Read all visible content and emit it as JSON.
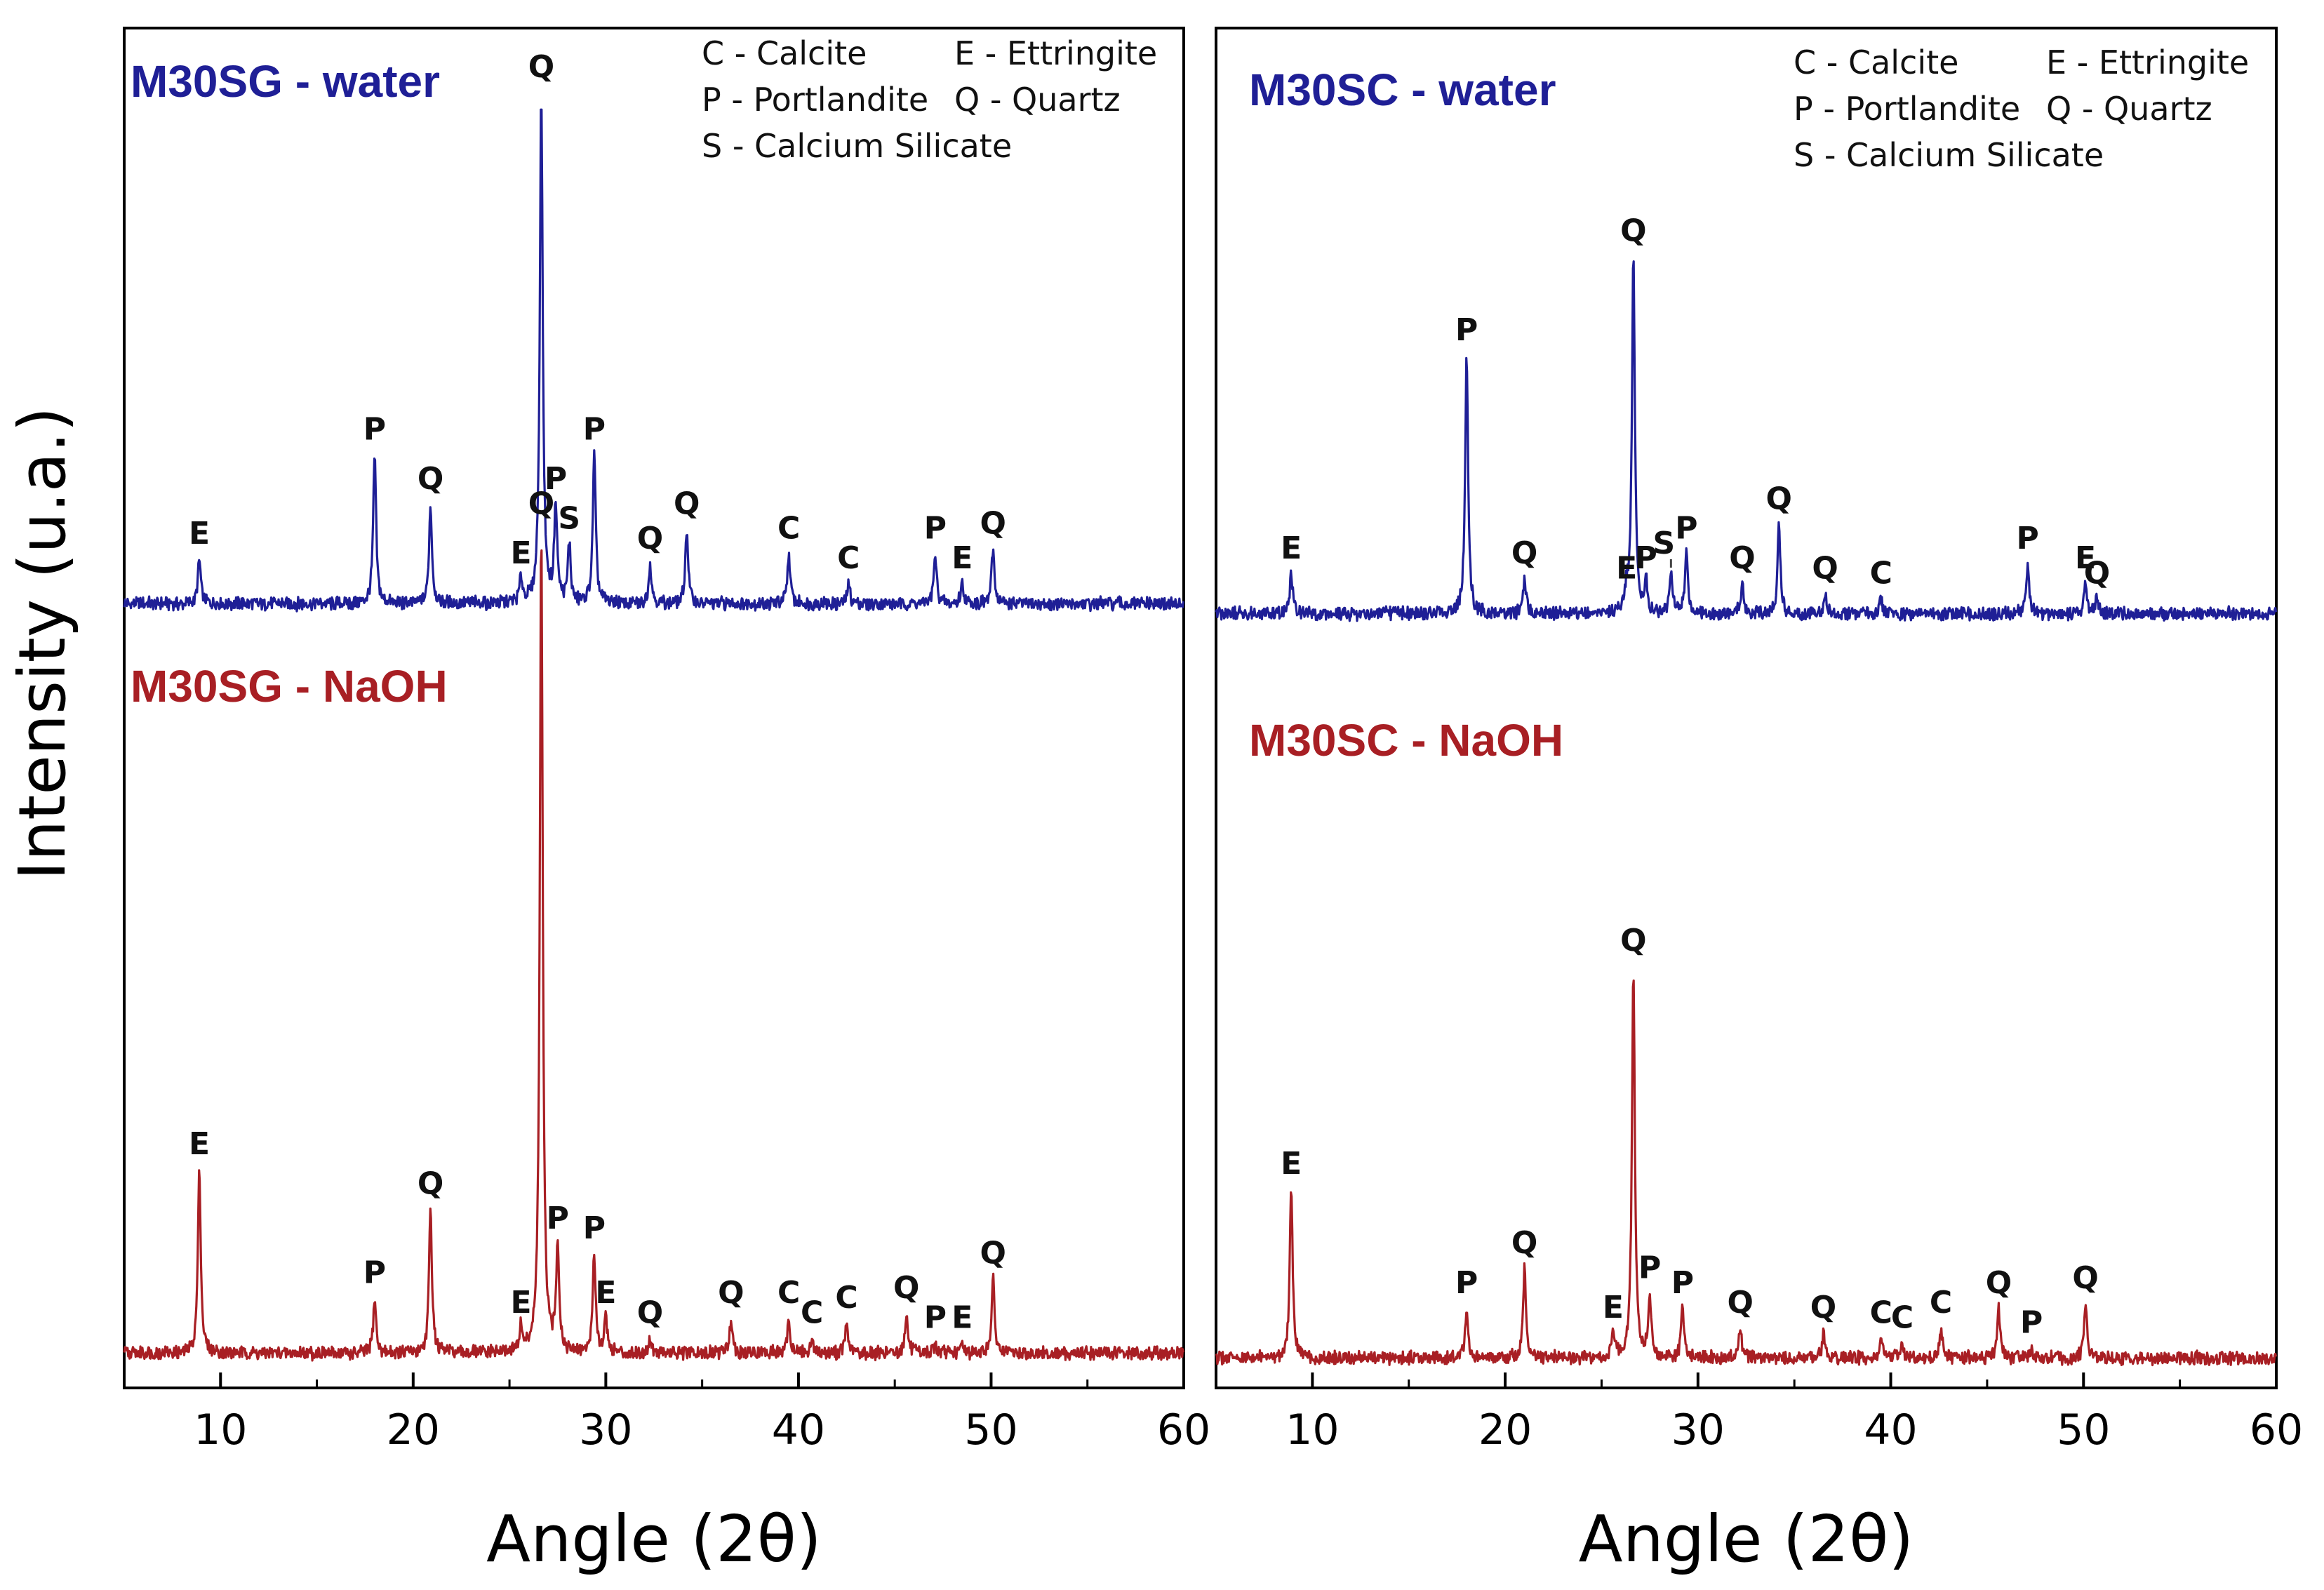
{
  "y_axis_label": "Intensity (u.a.)",
  "chart_data": [
    {
      "type": "line",
      "panel": "left",
      "xlabel": "Angle (2θ)",
      "ylabel": "Intensity (u.a.)",
      "xlim": [
        5,
        60
      ],
      "ylim": [
        -4,
        270
      ],
      "xticks": [
        10,
        20,
        30,
        40,
        50,
        60
      ],
      "legend": [
        "C - Calcite",
        "E - Ettringite",
        "P - Portlandite",
        "Q - Quartz",
        "S - Calcium Silicate"
      ],
      "legend_placement": "top-right",
      "series": [
        {
          "name": "M30SG - water",
          "color": "#1f1f96",
          "offset": 150,
          "baseline": 4,
          "noise": 1.2,
          "peaks": [
            {
              "x": 8.9,
              "h": 9,
              "label": "E"
            },
            {
              "x": 18.0,
              "h": 30,
              "label": "P"
            },
            {
              "x": 20.9,
              "h": 20,
              "label": "Q"
            },
            {
              "x": 25.6,
              "h": 5,
              "label": "E"
            },
            {
              "x": 26.65,
              "h": 103,
              "label": "Q"
            },
            {
              "x": 27.4,
              "h": 20,
              "label": "P"
            },
            {
              "x": 28.1,
              "h": 12,
              "label": "S"
            },
            {
              "x": 29.4,
              "h": 30,
              "label": "P"
            },
            {
              "x": 32.3,
              "h": 8,
              "label": "Q"
            },
            {
              "x": 34.2,
              "h": 15,
              "label": "Q"
            },
            {
              "x": 39.5,
              "h": 10,
              "label": "C"
            },
            {
              "x": 42.6,
              "h": 4,
              "label": "C"
            },
            {
              "x": 47.1,
              "h": 10,
              "label": "P"
            },
            {
              "x": 48.5,
              "h": 4,
              "label": "E"
            },
            {
              "x": 50.1,
              "h": 11,
              "label": "Q"
            }
          ]
        },
        {
          "name": "M30SG - NaOH",
          "color": "#a81f24",
          "offset": 0,
          "baseline": 3,
          "noise": 1.2,
          "peaks": [
            {
              "x": 8.9,
              "h": 37,
              "label": "E"
            },
            {
              "x": 18.0,
              "h": 11,
              "label": "P"
            },
            {
              "x": 20.9,
              "h": 29,
              "label": "Q"
            },
            {
              "x": 25.6,
              "h": 5,
              "label": "E"
            },
            {
              "x": 26.65,
              "h": 166,
              "label": "Q"
            },
            {
              "x": 27.5,
              "h": 22,
              "label": "P"
            },
            {
              "x": 29.4,
              "h": 20,
              "label": "P"
            },
            {
              "x": 30.0,
              "h": 7,
              "label": "E"
            },
            {
              "x": 32.3,
              "h": 3,
              "label": "Q"
            },
            {
              "x": 36.5,
              "h": 7,
              "label": "Q"
            },
            {
              "x": 39.5,
              "h": 7,
              "label": "C"
            },
            {
              "x": 40.7,
              "h": 3,
              "label": "C"
            },
            {
              "x": 42.5,
              "h": 6,
              "label": "C"
            },
            {
              "x": 45.6,
              "h": 8,
              "label": "Q"
            },
            {
              "x": 47.1,
              "h": 2,
              "label": "P"
            },
            {
              "x": 48.5,
              "h": 2,
              "label": "E"
            },
            {
              "x": 50.1,
              "h": 15,
              "label": "Q"
            }
          ]
        }
      ]
    },
    {
      "type": "line",
      "panel": "right",
      "xlabel": "Angle (2θ)",
      "ylabel": "Intensity (u.a.)",
      "xlim": [
        5,
        60
      ],
      "ylim": [
        -4,
        270
      ],
      "xticks": [
        10,
        20,
        30,
        40,
        50,
        60
      ],
      "legend": [
        "C - Calcite",
        "E - Ettringite",
        "P - Portlandite",
        "Q - Quartz",
        "S - Calcium Silicate"
      ],
      "legend_placement": "top-right",
      "series": [
        {
          "name": "M30SC - water",
          "color": "#1f1f96",
          "offset": 150,
          "baseline": 2,
          "noise": 1.2,
          "peaks": [
            {
              "x": 8.9,
              "h": 8,
              "label": "E"
            },
            {
              "x": 18.0,
              "h": 52,
              "label": "P"
            },
            {
              "x": 21.0,
              "h": 7,
              "label": "Q"
            },
            {
              "x": 26.3,
              "h": 4,
              "label": "E"
            },
            {
              "x": 26.65,
              "h": 72,
              "label": "Q"
            },
            {
              "x": 27.3,
              "h": 6,
              "label": "P"
            },
            {
              "x": 28.6,
              "h": 9,
              "label": "S"
            },
            {
              "x": 29.4,
              "h": 12,
              "label": "P"
            },
            {
              "x": 32.3,
              "h": 6,
              "label": "Q"
            },
            {
              "x": 34.2,
              "h": 18,
              "label": "Q"
            },
            {
              "x": 36.6,
              "h": 4,
              "label": "Q"
            },
            {
              "x": 39.5,
              "h": 3,
              "label": "C"
            },
            {
              "x": 47.1,
              "h": 10,
              "label": "P"
            },
            {
              "x": 50.1,
              "h": 6,
              "label": "E"
            },
            {
              "x": 50.7,
              "h": 3,
              "label": "Q"
            }
          ]
        },
        {
          "name": "M30SC - NaOH",
          "color": "#a81f24",
          "offset": 0,
          "baseline": 2,
          "noise": 1.2,
          "peaks": [
            {
              "x": 8.9,
              "h": 34,
              "label": "E"
            },
            {
              "x": 18.0,
              "h": 10,
              "label": "P"
            },
            {
              "x": 21.0,
              "h": 18,
              "label": "Q"
            },
            {
              "x": 25.6,
              "h": 5,
              "label": "E"
            },
            {
              "x": 26.65,
              "h": 79,
              "label": "Q"
            },
            {
              "x": 27.5,
              "h": 13,
              "label": "P"
            },
            {
              "x": 29.2,
              "h": 10,
              "label": "P"
            },
            {
              "x": 32.2,
              "h": 6,
              "label": "Q"
            },
            {
              "x": 36.5,
              "h": 5,
              "label": "Q"
            },
            {
              "x": 39.5,
              "h": 4,
              "label": "C"
            },
            {
              "x": 40.6,
              "h": 3,
              "label": "C"
            },
            {
              "x": 42.6,
              "h": 6,
              "label": "C"
            },
            {
              "x": 45.6,
              "h": 10,
              "label": "Q"
            },
            {
              "x": 47.3,
              "h": 2,
              "label": "P"
            },
            {
              "x": 50.1,
              "h": 11,
              "label": "Q"
            }
          ]
        }
      ]
    }
  ]
}
